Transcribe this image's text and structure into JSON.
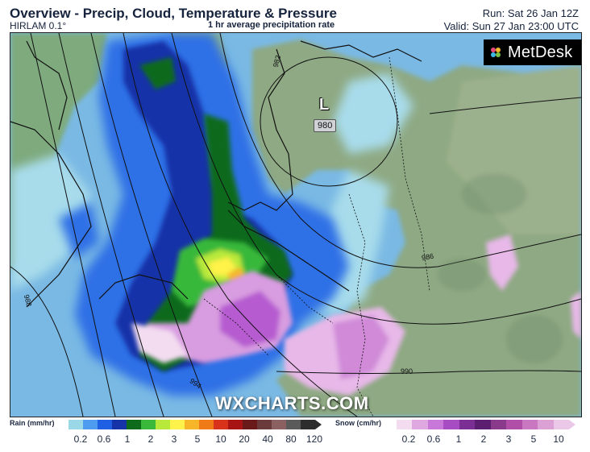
{
  "header": {
    "title": "Overview - Precip, Cloud, Temperature & Pressure",
    "model": "HIRLAM 0.1°",
    "subtitle": "1 hr average precipitation rate",
    "run": "Run: Sat 26 Jan 12Z",
    "valid": "Valid: Sun 27 Jan 23:00 UTC"
  },
  "branding": {
    "logo_text": "MetDesk",
    "watermark": "WXCHARTS.COM"
  },
  "pressure_system": {
    "letter": "L",
    "value": "980"
  },
  "isobar_labels": [
    "982",
    "986",
    "988",
    "990",
    "994"
  ],
  "legend": {
    "rain": {
      "title": "Rain (mm/hr)",
      "tick_labels": [
        "0.2",
        "0.6",
        "1",
        "2",
        "3",
        "5",
        "10",
        "20",
        "40",
        "80",
        "120"
      ],
      "colors": [
        "#9ad8e8",
        "#4e9cf0",
        "#1e5fe4",
        "#1633a8",
        "#0e6b1c",
        "#39b83a",
        "#b8e83a",
        "#fff24a",
        "#f7b52a",
        "#f07a18",
        "#d8331a",
        "#a81414",
        "#6b1a1a",
        "#6b3a3a",
        "#8a6060",
        "#5a5a5a",
        "#2d2d2d"
      ]
    },
    "snow": {
      "title": "Snow (cm/hr)",
      "tick_labels": [
        "0.2",
        "0.6",
        "1",
        "2",
        "3",
        "5",
        "10"
      ],
      "colors": [
        "#f3dcf0",
        "#e0a8e0",
        "#c878d8",
        "#a84cc4",
        "#7b2e94",
        "#5c1e70",
        "#8a3a8a",
        "#b04ea8",
        "#c877c0",
        "#dba0d4",
        "#ecc8e8"
      ]
    }
  },
  "colors": {
    "sea": "#9fd9ea",
    "land": "#8aa580",
    "rain_light": "#4e9cf0",
    "rain_moderate": "#1633a8",
    "rain_heavy": "#0e6b1c",
    "snow": "#c878d8"
  }
}
